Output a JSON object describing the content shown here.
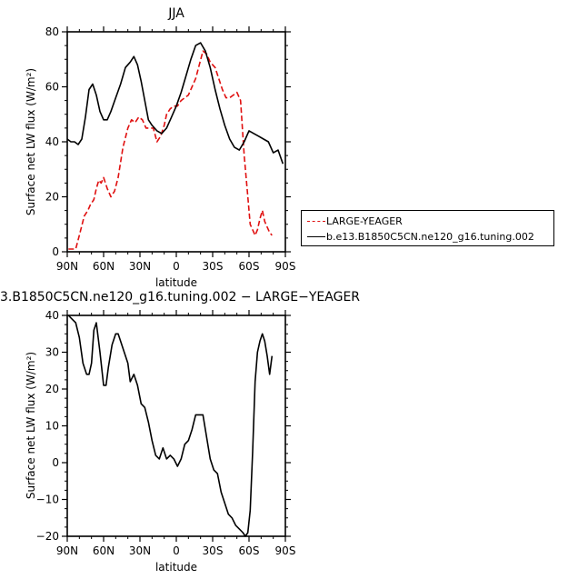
{
  "chart_data": [
    {
      "type": "line",
      "title": "JJA",
      "xlabel": "latitude",
      "ylabel": "Surface net LW flux (W/m²)",
      "xlim": [
        90,
        -90
      ],
      "ylim": [
        0,
        80
      ],
      "xticks": [
        90,
        60,
        30,
        0,
        -30,
        -60,
        -90
      ],
      "xtick_labels": [
        "90N",
        "60N",
        "30N",
        "0",
        "30S",
        "60S",
        "90S"
      ],
      "yticks": [
        0,
        20,
        40,
        60,
        80
      ],
      "ytick_labels": [
        "0",
        "20",
        "40",
        "60",
        "80"
      ],
      "legend_position": "right",
      "series": [
        {
          "name": "LARGE-YEAGER",
          "color": "#e01010",
          "style": "dashed",
          "x": [
            89,
            83,
            80,
            76,
            73,
            71,
            68,
            66,
            64,
            62,
            60,
            57,
            54,
            51,
            48,
            44,
            40,
            37,
            34,
            31,
            28,
            25,
            22,
            19,
            16,
            13,
            10,
            8,
            5,
            2,
            -1,
            -4,
            -7,
            -10,
            -13,
            -16,
            -19,
            -22,
            -25,
            -28,
            -30,
            -32,
            -35,
            -38,
            -41,
            -44,
            -47,
            -50,
            -53,
            -56,
            -59,
            -61,
            -63,
            -65,
            -67,
            -69,
            -71,
            -73,
            -75,
            -77,
            -79
          ],
          "y": [
            1,
            1,
            6,
            13,
            15,
            17,
            19,
            23,
            26,
            25,
            27,
            23,
            20,
            22,
            27,
            38,
            45,
            48,
            47,
            49,
            48,
            45,
            45,
            45,
            40,
            42,
            46,
            50,
            52,
            53,
            53,
            55,
            56,
            57,
            60,
            63,
            68,
            73,
            72,
            69,
            68,
            67,
            63,
            59,
            56,
            56,
            57,
            58,
            55,
            35,
            20,
            10,
            8,
            6,
            8,
            12,
            15,
            11,
            9,
            7,
            6
          ]
        },
        {
          "name": "b.e13.B1850C5CN.ne120_g16.tuning.002",
          "color": "#000000",
          "style": "solid",
          "x": [
            90,
            87,
            84,
            81,
            78,
            75,
            72,
            69,
            66,
            63,
            60,
            57,
            54,
            50,
            46,
            42,
            38,
            35,
            32,
            29,
            26,
            23,
            20,
            16,
            12,
            8,
            4,
            0,
            -4,
            -8,
            -12,
            -16,
            -20,
            -24,
            -28,
            -32,
            -36,
            -40,
            -44,
            -48,
            -52,
            -56,
            -60,
            -64,
            -68,
            -72,
            -76,
            -80,
            -84,
            -88
          ],
          "y": [
            41,
            40,
            40,
            39,
            41,
            49,
            59,
            61,
            57,
            51,
            48,
            48,
            51,
            56,
            61,
            67,
            69,
            71,
            68,
            62,
            55,
            48,
            46,
            44,
            43,
            45,
            49,
            53,
            58,
            64,
            70,
            75,
            76,
            73,
            67,
            59,
            52,
            46,
            41,
            38,
            37,
            40,
            44,
            43,
            42,
            41,
            40,
            36,
            37,
            32
          ]
        }
      ]
    },
    {
      "type": "line",
      "title": "3.B1850C5CN.ne120_g16.tuning.002 − LARGE−YEAGER",
      "xlabel": "latitude",
      "ylabel": "Surface net LW flux (W/m²)",
      "xlim": [
        90,
        -90
      ],
      "ylim": [
        -20,
        40
      ],
      "xticks": [
        90,
        60,
        30,
        0,
        -30,
        -60,
        -90
      ],
      "xtick_labels": [
        "90N",
        "60N",
        "30N",
        "0",
        "30S",
        "60S",
        "90S"
      ],
      "yticks": [
        -20,
        -10,
        0,
        10,
        20,
        30,
        40
      ],
      "ytick_labels": [
        "−20",
        "−10",
        "0",
        "10",
        "20",
        "30",
        "40"
      ],
      "series": [
        {
          "color": "#000000",
          "style": "solid",
          "x": [
            89,
            86,
            83,
            80,
            77,
            74,
            72,
            70,
            68,
            66,
            63,
            60,
            58,
            56,
            53,
            50,
            48,
            46,
            43,
            40,
            38,
            35,
            32,
            29,
            26,
            23,
            20,
            17,
            14,
            11,
            8,
            5,
            2,
            -1,
            -4,
            -7,
            -10,
            -13,
            -16,
            -19,
            -22,
            -25,
            -28,
            -31,
            -34,
            -37,
            -40,
            -43,
            -46,
            -49,
            -52,
            -55,
            -57,
            -59,
            -61,
            -63,
            -65,
            -67,
            -69,
            -71,
            -73,
            -75,
            -77,
            -79
          ],
          "y": [
            40,
            39,
            38,
            34,
            27,
            24,
            24,
            27,
            36,
            38,
            30,
            21,
            21,
            26,
            32,
            35,
            35,
            33,
            30,
            27,
            22,
            24,
            21,
            16,
            15,
            11,
            6,
            2,
            1,
            4,
            1,
            2,
            1,
            -1,
            1,
            5,
            6,
            9,
            13,
            13,
            13,
            7,
            1,
            -2,
            -3,
            -8,
            -11,
            -14,
            -15,
            -17,
            -18,
            -19,
            -20,
            -19,
            -13,
            3,
            22,
            30,
            33,
            35,
            33,
            29,
            24,
            29
          ]
        }
      ]
    }
  ]
}
